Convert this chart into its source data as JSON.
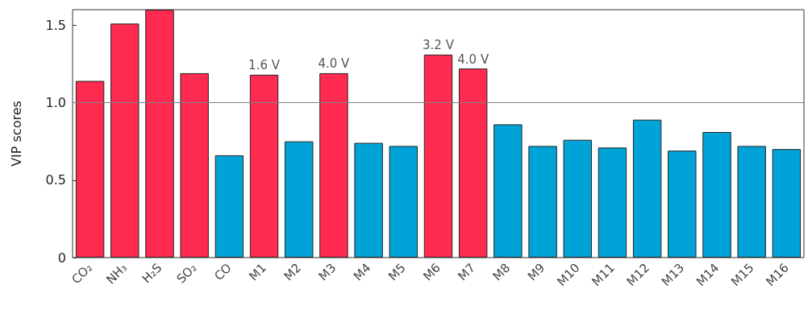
{
  "chart_data": {
    "type": "bar",
    "ylabel": "VIP scores",
    "categories": [
      "CO₂",
      "NH₃",
      "H₂S",
      "SO₂",
      "CO",
      "M1",
      "M2",
      "M3",
      "M4",
      "M5",
      "M6",
      "M7",
      "M8",
      "M9",
      "M10",
      "M11",
      "M12",
      "M13",
      "M14",
      "M15",
      "M16"
    ],
    "values": [
      1.14,
      1.51,
      1.6,
      1.19,
      0.66,
      1.18,
      0.75,
      1.19,
      0.74,
      0.72,
      1.31,
      1.22,
      0.86,
      0.72,
      0.76,
      0.71,
      0.89,
      0.69,
      0.81,
      0.72,
      0.7
    ],
    "colors": [
      "#ff2a4f",
      "#ff2a4f",
      "#ff2a4f",
      "#ff2a4f",
      "#00a3d7",
      "#ff2a4f",
      "#00a3d7",
      "#ff2a4f",
      "#00a3d7",
      "#00a3d7",
      "#ff2a4f",
      "#ff2a4f",
      "#00a3d7",
      "#00a3d7",
      "#00a3d7",
      "#00a3d7",
      "#00a3d7",
      "#00a3d7",
      "#00a3d7",
      "#00a3d7",
      "#00a3d7"
    ],
    "ylim": [
      0,
      1.6
    ],
    "yticks": [
      0,
      0.5,
      {
        "value": 1,
        "label": "1.0"
      },
      1.5
    ],
    "ref_lines": [
      {
        "axis": "y",
        "value": 1,
        "color": "#808080"
      }
    ],
    "annotations": [
      {
        "text": "1.6 V",
        "x": "M1",
        "y": 1.18
      },
      {
        "text": "4.0 V",
        "x": "M3",
        "y": 1.19
      },
      {
        "text": "3.2 V",
        "x": "M6",
        "y": 1.31
      },
      {
        "text": "4.0 V",
        "x": "M7",
        "y": 1.22
      }
    ],
    "grid": false
  }
}
